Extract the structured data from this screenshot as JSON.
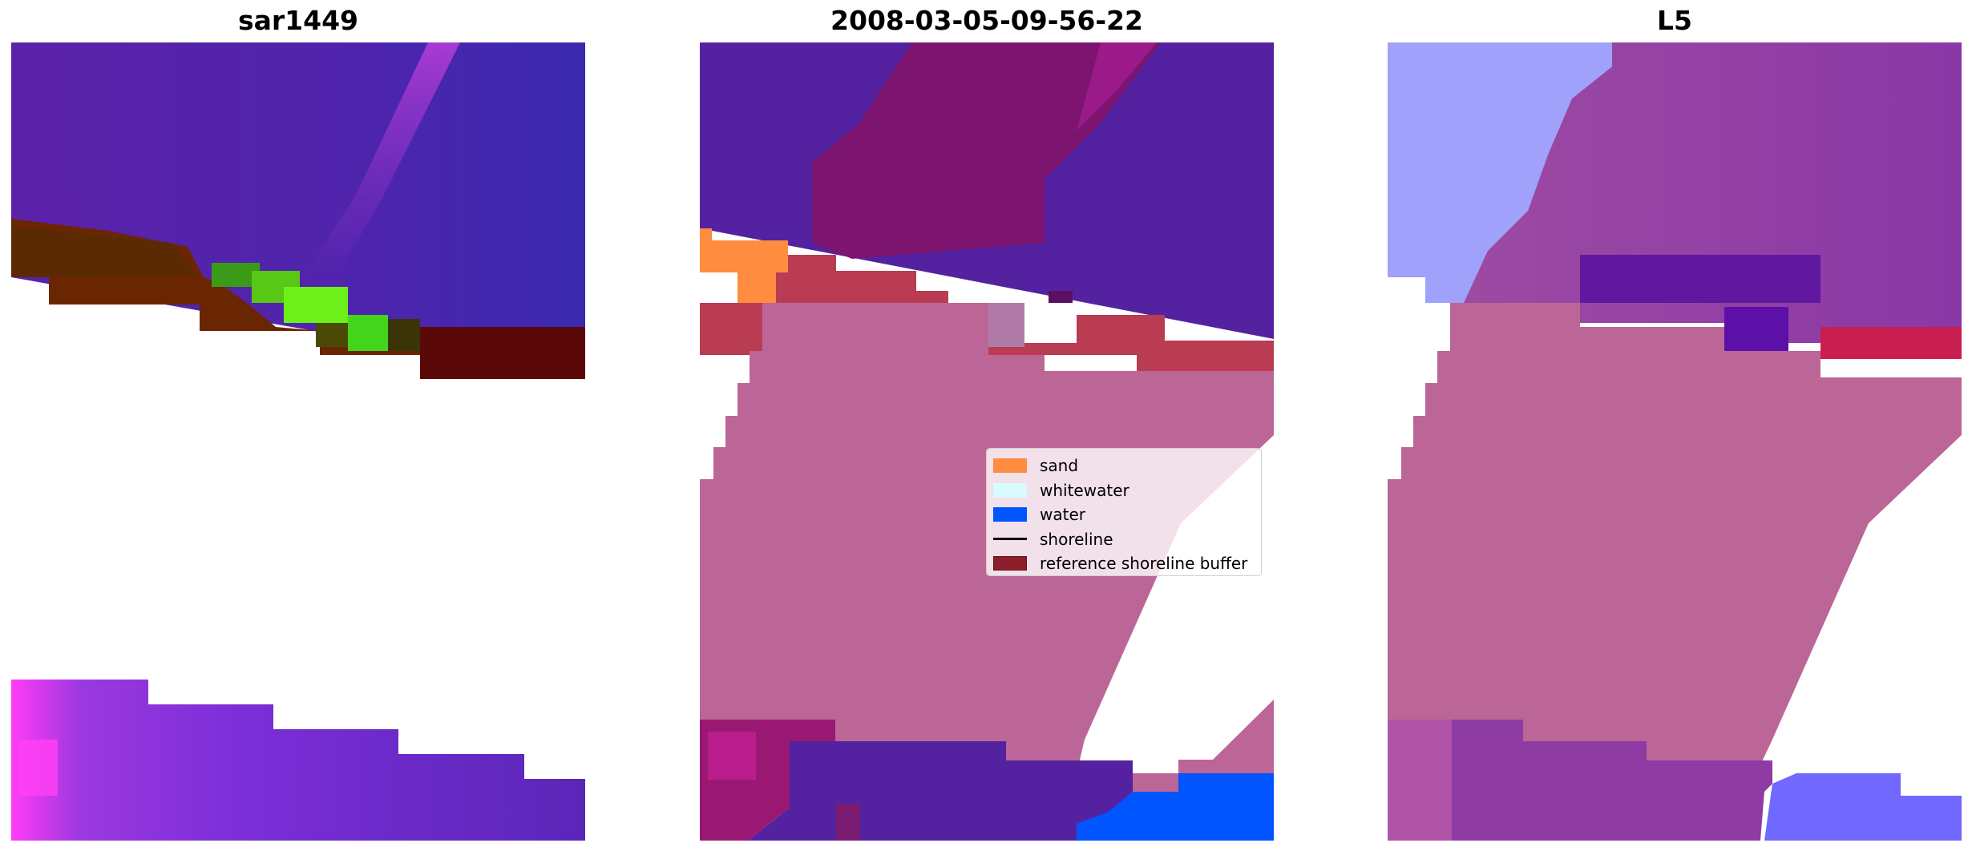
{
  "panels": [
    {
      "title": "sar1449"
    },
    {
      "title": "2008-03-05-09-56-22"
    },
    {
      "title": "L5"
    }
  ],
  "legend": {
    "items": [
      {
        "label": "sand",
        "color": "#ff8c3f",
        "kind": "patch"
      },
      {
        "label": "whitewater",
        "color": "#d8fbff",
        "kind": "patch"
      },
      {
        "label": "water",
        "color": "#0055ff",
        "kind": "patch"
      },
      {
        "label": "shoreline",
        "color": "#000000",
        "kind": "line"
      },
      {
        "label": "reference shoreline buffer",
        "color": "#8b1f2c",
        "kind": "patch"
      }
    ]
  },
  "colors": {
    "background": "#ffffff",
    "buffer_overlay": "#bc6697",
    "deep_purple": "#5522a0",
    "magenta": "#7c1470",
    "water_blue": "#0055ff"
  }
}
